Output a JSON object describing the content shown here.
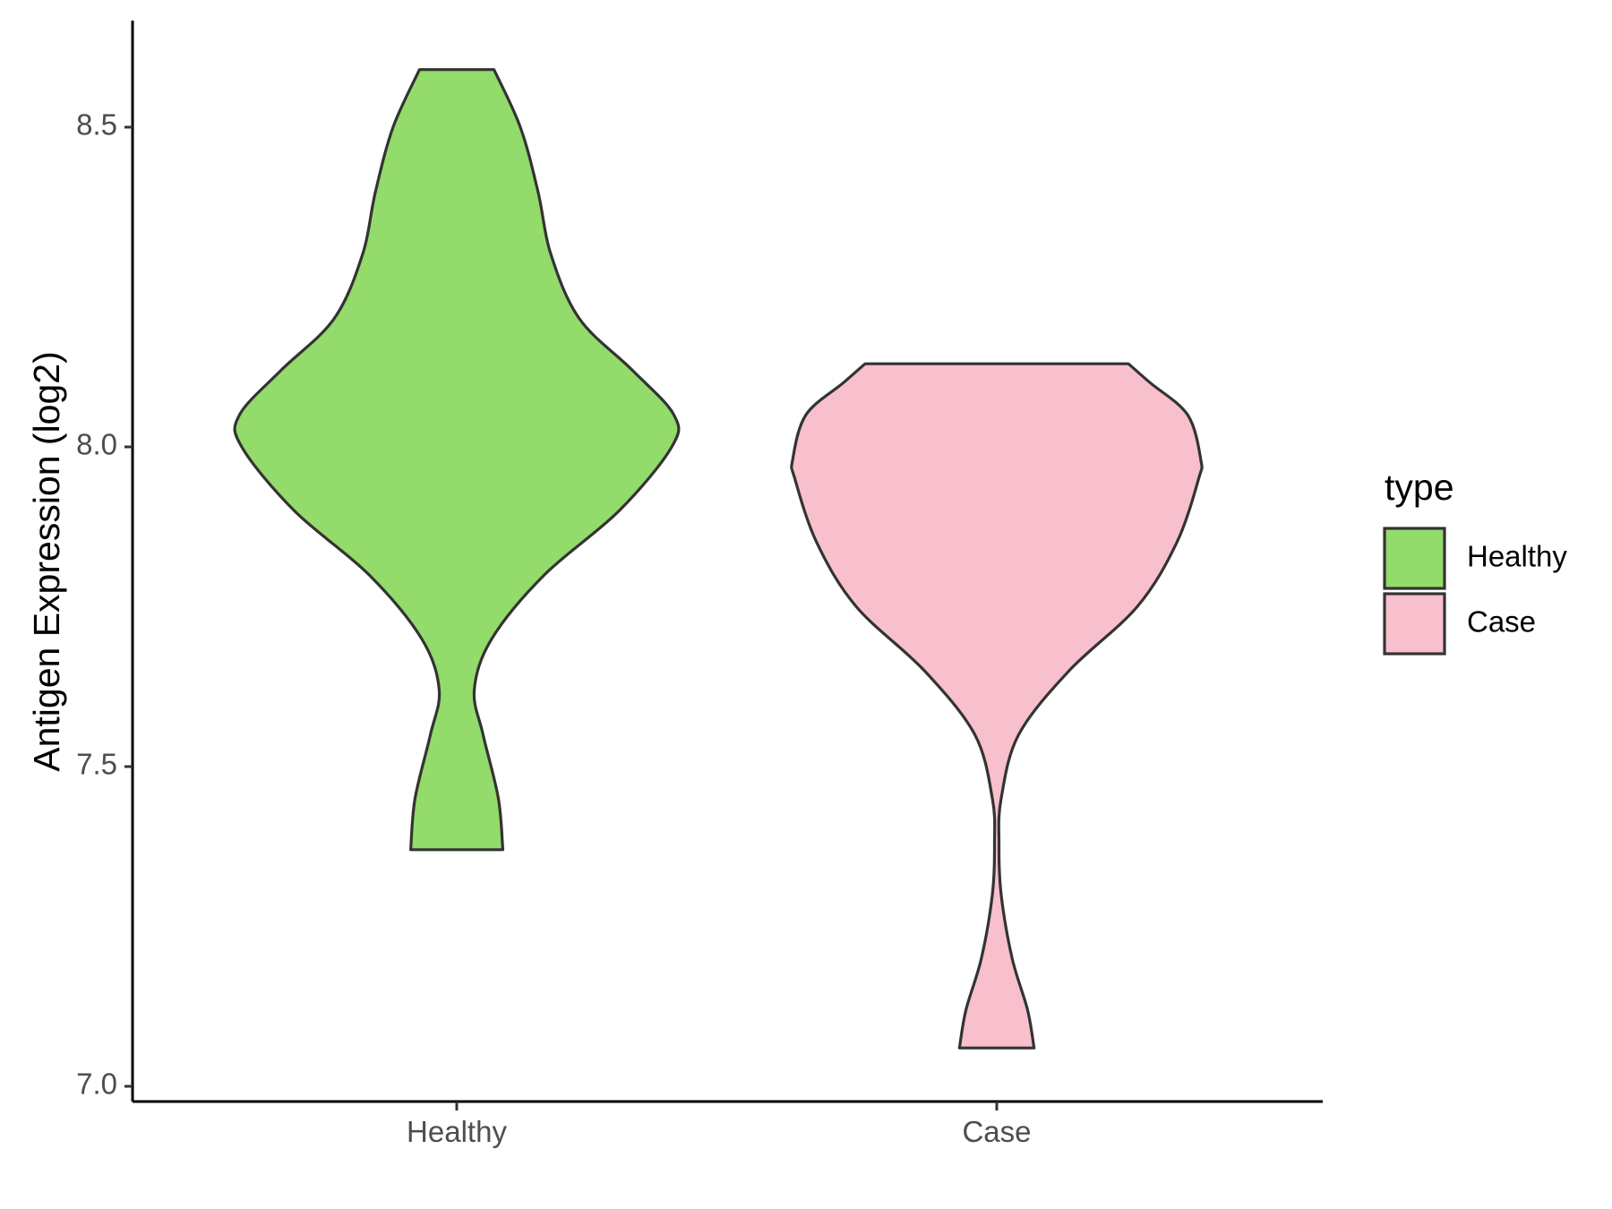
{
  "chart_data": {
    "type": "violin",
    "title": "",
    "xlabel": "",
    "ylabel": "Antigen Expression (log2)",
    "ylim": [
      6.97,
      8.67
    ],
    "yticks": [
      "7.0",
      "7.5",
      "8.0",
      "8.5"
    ],
    "grid": false,
    "categories": [
      "Healthy",
      "Case"
    ],
    "series": [
      {
        "name": "Healthy",
        "color": "#93DB6A",
        "min": 7.37,
        "max": 8.59,
        "density_profile": [
          [
            7.37,
            0.21
          ],
          [
            7.45,
            0.19
          ],
          [
            7.55,
            0.12
          ],
          [
            7.62,
            0.08
          ],
          [
            7.7,
            0.16
          ],
          [
            7.8,
            0.4
          ],
          [
            7.9,
            0.74
          ],
          [
            8.0,
            0.98
          ],
          [
            8.05,
            0.99
          ],
          [
            8.12,
            0.8
          ],
          [
            8.2,
            0.56
          ],
          [
            8.3,
            0.43
          ],
          [
            8.4,
            0.37
          ],
          [
            8.5,
            0.29
          ],
          [
            8.59,
            0.17
          ]
        ]
      },
      {
        "name": "Case",
        "color": "#F8C0CC",
        "min": 7.06,
        "max": 8.13,
        "density_profile": [
          [
            7.06,
            0.17
          ],
          [
            7.12,
            0.14
          ],
          [
            7.2,
            0.07
          ],
          [
            7.3,
            0.02
          ],
          [
            7.38,
            0.01
          ],
          [
            7.45,
            0.02
          ],
          [
            7.55,
            0.1
          ],
          [
            7.65,
            0.33
          ],
          [
            7.75,
            0.64
          ],
          [
            7.85,
            0.82
          ],
          [
            7.95,
            0.92
          ],
          [
            7.98,
            0.93
          ],
          [
            8.05,
            0.87
          ],
          [
            8.1,
            0.7
          ],
          [
            8.13,
            0.6
          ]
        ]
      }
    ],
    "legend": {
      "title": "type",
      "position": "right",
      "entries": [
        {
          "label": "Healthy",
          "color": "#93DB6A"
        },
        {
          "label": "Case",
          "color": "#F8C0CC"
        }
      ]
    }
  }
}
